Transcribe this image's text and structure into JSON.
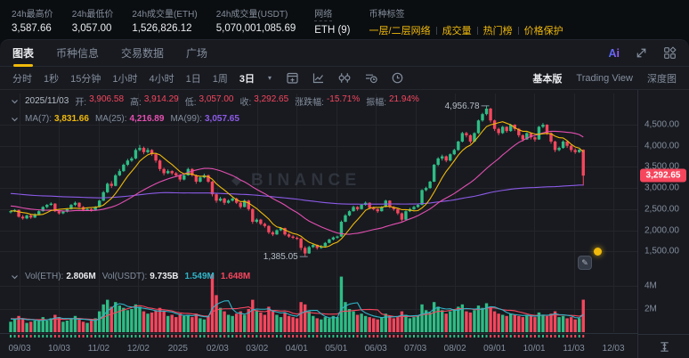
{
  "stats_bar": {
    "items": [
      {
        "label": "24h最高价",
        "value": "3,587.66"
      },
      {
        "label": "24h最低价",
        "value": "3,057.00"
      },
      {
        "label": "24h成交量(ETH)",
        "value": "1,526,826.12"
      },
      {
        "label": "24h成交量(USDT)",
        "value": "5,070,001,085.69"
      },
      {
        "label": "网络",
        "value": "ETH (9)",
        "dashed": true
      }
    ],
    "tags_label": "币种标签",
    "tags": [
      "一层/二层网络",
      "成交量",
      "热门榜",
      "价格保护"
    ]
  },
  "tabs": [
    {
      "label": "图表",
      "active": true
    },
    {
      "label": "币种信息",
      "active": false
    },
    {
      "label": "交易数据",
      "active": false
    },
    {
      "label": "广场",
      "active": false
    }
  ],
  "header_icons": {
    "ai_label": "Ai"
  },
  "toolbar": {
    "intervals": [
      "分时",
      "1秒",
      "15分钟",
      "1小时",
      "4小时",
      "1日",
      "1周"
    ],
    "selected_interval": "3日",
    "views": [
      {
        "label": "基本版",
        "active": true
      },
      {
        "label": "Trading View",
        "active": false
      },
      {
        "label": "深度图",
        "active": false
      }
    ]
  },
  "ohlc_row": {
    "date": "2025/11/03",
    "items": [
      {
        "label": "开:",
        "value": "3,906.58"
      },
      {
        "label": "高:",
        "value": "3,914.29"
      },
      {
        "label": "低:",
        "value": "3,057.00"
      },
      {
        "label": "收:",
        "value": "3,292.65"
      },
      {
        "label": "涨跌幅:",
        "value": "-15.71%"
      },
      {
        "label": "振幅:",
        "value": "21.94%"
      }
    ],
    "value_color": "#f6465d"
  },
  "ma_row": {
    "items": [
      {
        "label": "MA(7):",
        "value": "3,831.66",
        "color": "#f0b90b"
      },
      {
        "label": "MA(25):",
        "value": "4,216.89",
        "color": "#e44fb0"
      },
      {
        "label": "MA(99):",
        "value": "3,057.65",
        "color": "#8d5be8"
      }
    ]
  },
  "vol_row": {
    "items": [
      {
        "label": "Vol(ETH):",
        "value": "2.806M",
        "color": "#eaecef"
      },
      {
        "label": "Vol(USDT):",
        "value": "9.735B",
        "color": "#eaecef"
      },
      {
        "label": "",
        "value": "1.549M",
        "color": "#30b5c8"
      },
      {
        "label": "",
        "value": "1.648M",
        "color": "#f6465d"
      }
    ]
  },
  "watermark": "BINANCE",
  "chart_data": {
    "type": "candlestick",
    "interval": "3日",
    "x_ticks": [
      "09/03",
      "10/03",
      "11/02",
      "12/02",
      "2025",
      "02/03",
      "03/02",
      "04/01",
      "05/01",
      "06/03",
      "07/03",
      "08/02",
      "09/01",
      "10/01",
      "11/03",
      "12/03"
    ],
    "y_ticks": [
      {
        "label": "4,500.00",
        "value": 4500
      },
      {
        "label": "4,000.00",
        "value": 4000
      },
      {
        "label": "3,500.00",
        "value": 3500
      },
      {
        "label": "3,000.00",
        "value": 3000
      },
      {
        "label": "2,500.00",
        "value": 2500
      },
      {
        "label": "2,000.00",
        "value": 2000
      },
      {
        "label": "1,500.00",
        "value": 1500
      }
    ],
    "vol_ticks": [
      {
        "label": "4M",
        "value": 4
      },
      {
        "label": "2M",
        "value": 2
      }
    ],
    "current_price": "3,292.65",
    "current_price_value": 3292.65,
    "high_annotation": {
      "label": "4,956.78",
      "value": 4956.78,
      "candle_index": 118
    },
    "low_annotation": {
      "label": "1,385.05",
      "value": 1385.05,
      "candle_index": 73
    },
    "colors": {
      "up": "#2ebd85",
      "down": "#f6465d",
      "ma7": "#f0b90b",
      "ma25": "#e44fb0",
      "ma99": "#8d5be8",
      "vol_ma5": "#30b5c8",
      "vol_ma10": "#f6465d"
    },
    "ma_seed_closes": [
      3500,
      3520,
      3480,
      3450,
      3400,
      3380,
      3350,
      3300,
      3250,
      3200,
      3150,
      3100,
      3150,
      3200,
      3100,
      3050,
      3000,
      3050,
      3100,
      3000,
      2950,
      2900,
      2950,
      3000,
      2950,
      2900,
      2850,
      2900,
      2950,
      2850,
      2800,
      2750,
      2800,
      2850,
      2800,
      2750,
      2700,
      2750,
      2800,
      2700,
      2650,
      2600,
      2650,
      2700,
      2650,
      2600,
      2550,
      2600,
      2650,
      2550,
      2500,
      2450,
      2500,
      2550,
      2500,
      2450,
      2400,
      2450,
      2500,
      2450
    ],
    "ma_seed_volume": 1.2,
    "candles": [
      [
        2430,
        2470,
        2400,
        2450
      ],
      [
        2450,
        2500,
        2430,
        2480
      ],
      [
        2480,
        2490,
        2300,
        2320
      ],
      [
        2320,
        2360,
        2250,
        2280
      ],
      [
        2280,
        2370,
        2260,
        2350
      ],
      [
        2350,
        2380,
        2270,
        2300
      ],
      [
        2300,
        2400,
        2290,
        2380
      ],
      [
        2380,
        2470,
        2360,
        2450
      ],
      [
        2450,
        2570,
        2440,
        2550
      ],
      [
        2550,
        2620,
        2520,
        2600
      ],
      [
        2600,
        2660,
        2580,
        2630
      ],
      [
        2630,
        2640,
        2430,
        2450
      ],
      [
        2450,
        2480,
        2370,
        2400
      ],
      [
        2400,
        2460,
        2380,
        2440
      ],
      [
        2440,
        2520,
        2420,
        2500
      ],
      [
        2500,
        2620,
        2490,
        2600
      ],
      [
        2600,
        2680,
        2570,
        2650
      ],
      [
        2650,
        2660,
        2530,
        2550
      ],
      [
        2550,
        2570,
        2450,
        2480
      ],
      [
        2480,
        2530,
        2460,
        2500
      ],
      [
        2500,
        2520,
        2440,
        2480
      ],
      [
        2480,
        2570,
        2460,
        2550
      ],
      [
        2550,
        2720,
        2540,
        2700
      ],
      [
        2700,
        2930,
        2690,
        2900
      ],
      [
        2900,
        3130,
        2880,
        3100
      ],
      [
        3100,
        3160,
        3000,
        3050
      ],
      [
        3050,
        3330,
        3040,
        3300
      ],
      [
        3300,
        3450,
        3280,
        3400
      ],
      [
        3400,
        3580,
        3380,
        3550
      ],
      [
        3550,
        3690,
        3520,
        3650
      ],
      [
        3650,
        3740,
        3620,
        3700
      ],
      [
        3700,
        3940,
        3680,
        3900
      ],
      [
        3900,
        4020,
        3870,
        3950
      ],
      [
        3950,
        3980,
        3800,
        3850
      ],
      [
        3850,
        3950,
        3820,
        3900
      ],
      [
        3900,
        3920,
        3760,
        3800
      ],
      [
        3800,
        3830,
        3600,
        3650
      ],
      [
        3650,
        3680,
        3400,
        3450
      ],
      [
        3450,
        3480,
        3300,
        3350
      ],
      [
        3350,
        3440,
        3330,
        3400
      ],
      [
        3400,
        3420,
        3310,
        3350
      ],
      [
        3350,
        3380,
        3260,
        3300
      ],
      [
        3300,
        3330,
        3150,
        3200
      ],
      [
        3200,
        3340,
        3180,
        3300
      ],
      [
        3300,
        3480,
        3290,
        3450
      ],
      [
        3450,
        3470,
        3270,
        3300
      ],
      [
        3300,
        3320,
        3100,
        3150
      ],
      [
        3150,
        3280,
        3130,
        3250
      ],
      [
        3250,
        3340,
        3230,
        3300
      ],
      [
        3300,
        3320,
        3120,
        3150
      ],
      [
        3150,
        3170,
        2800,
        2850
      ],
      [
        2850,
        2880,
        2650,
        2700
      ],
      [
        2700,
        2790,
        2680,
        2750
      ],
      [
        2750,
        2770,
        2600,
        2650
      ],
      [
        2650,
        2730,
        2630,
        2700
      ],
      [
        2700,
        2780,
        2680,
        2750
      ],
      [
        2750,
        2770,
        2620,
        2650
      ],
      [
        2650,
        2670,
        2510,
        2550
      ],
      [
        2550,
        2730,
        2540,
        2700
      ],
      [
        2700,
        2720,
        2460,
        2500
      ],
      [
        2500,
        2520,
        2150,
        2200
      ],
      [
        2200,
        2280,
        2170,
        2250
      ],
      [
        2250,
        2270,
        2120,
        2150
      ],
      [
        2150,
        2180,
        2060,
        2100
      ],
      [
        2100,
        2120,
        1910,
        1950
      ],
      [
        1950,
        1980,
        1860,
        1900
      ],
      [
        1900,
        2020,
        1890,
        2000
      ],
      [
        2000,
        2070,
        1980,
        2050
      ],
      [
        2050,
        2060,
        1870,
        1900
      ],
      [
        1900,
        1930,
        1820,
        1850
      ],
      [
        1850,
        1880,
        1790,
        1820
      ],
      [
        1820,
        1850,
        1770,
        1800
      ],
      [
        1800,
        1820,
        1520,
        1580
      ],
      [
        1580,
        1620,
        1385.05,
        1450
      ],
      [
        1450,
        1630,
        1440,
        1600
      ],
      [
        1600,
        1680,
        1580,
        1650
      ],
      [
        1650,
        1660,
        1540,
        1580
      ],
      [
        1580,
        1650,
        1560,
        1620
      ],
      [
        1620,
        1720,
        1610,
        1700
      ],
      [
        1700,
        1800,
        1690,
        1780
      ],
      [
        1780,
        1850,
        1760,
        1830
      ],
      [
        1830,
        1870,
        1800,
        1850
      ],
      [
        1850,
        2230,
        1840,
        2200
      ],
      [
        2200,
        2380,
        2190,
        2350
      ],
      [
        2350,
        2470,
        2330,
        2450
      ],
      [
        2450,
        2580,
        2440,
        2550
      ],
      [
        2550,
        2570,
        2460,
        2500
      ],
      [
        2500,
        2620,
        2490,
        2600
      ],
      [
        2600,
        2680,
        2580,
        2650
      ],
      [
        2650,
        2660,
        2500,
        2530
      ],
      [
        2530,
        2560,
        2470,
        2500
      ],
      [
        2500,
        2520,
        2410,
        2450
      ],
      [
        2450,
        2570,
        2440,
        2550
      ],
      [
        2550,
        2720,
        2540,
        2700
      ],
      [
        2700,
        2710,
        2520,
        2550
      ],
      [
        2550,
        2570,
        2460,
        2500
      ],
      [
        2500,
        2520,
        2360,
        2400
      ],
      [
        2400,
        2420,
        2210,
        2250
      ],
      [
        2250,
        2470,
        2240,
        2450
      ],
      [
        2450,
        2530,
        2430,
        2500
      ],
      [
        2500,
        2580,
        2480,
        2550
      ],
      [
        2550,
        2630,
        2530,
        2600
      ],
      [
        2600,
        2970,
        2590,
        2950
      ],
      [
        2950,
        3030,
        2920,
        3000
      ],
      [
        3000,
        3170,
        2980,
        3150
      ],
      [
        3150,
        3570,
        3140,
        3550
      ],
      [
        3550,
        3730,
        3520,
        3700
      ],
      [
        3700,
        3790,
        3650,
        3750
      ],
      [
        3750,
        3770,
        3610,
        3650
      ],
      [
        3650,
        3820,
        3630,
        3800
      ],
      [
        3800,
        3930,
        3780,
        3900
      ],
      [
        3900,
        4120,
        3880,
        4100
      ],
      [
        4100,
        4330,
        4080,
        4300
      ],
      [
        4300,
        4330,
        4200,
        4250
      ],
      [
        4250,
        4270,
        4050,
        4100
      ],
      [
        4100,
        4320,
        4090,
        4300
      ],
      [
        4300,
        4620,
        4280,
        4600
      ],
      [
        4600,
        4780,
        4570,
        4750
      ],
      [
        4750,
        4956.78,
        4720,
        4880
      ],
      [
        4880,
        4900,
        4550,
        4600
      ],
      [
        4600,
        4620,
        4350,
        4400
      ],
      [
        4400,
        4430,
        4250,
        4300
      ],
      [
        4300,
        4470,
        4280,
        4450
      ],
      [
        4450,
        4460,
        4310,
        4350
      ],
      [
        4350,
        4520,
        4330,
        4500
      ],
      [
        4500,
        4510,
        4350,
        4400
      ],
      [
        4400,
        4420,
        4200,
        4250
      ],
      [
        4250,
        4270,
        4100,
        4150
      ],
      [
        4150,
        4320,
        4140,
        4300
      ],
      [
        4300,
        4310,
        4150,
        4200
      ],
      [
        4200,
        4220,
        4100,
        4150
      ],
      [
        4150,
        4470,
        4140,
        4450
      ],
      [
        4450,
        4540,
        4420,
        4500
      ],
      [
        4500,
        4510,
        4260,
        4300
      ],
      [
        4300,
        4320,
        4050,
        4100
      ],
      [
        4100,
        4120,
        3850,
        3900
      ],
      [
        3900,
        3980,
        3870,
        3950
      ],
      [
        3950,
        4130,
        3930,
        4100
      ],
      [
        4100,
        4110,
        3950,
        4000
      ],
      [
        4000,
        4020,
        3850,
        3900
      ],
      [
        3900,
        3940,
        3810,
        3850
      ],
      [
        3850,
        3920,
        3830,
        3906.58
      ],
      [
        3906.58,
        3914.29,
        3057.0,
        3292.65
      ]
    ],
    "volumes_m": [
      0.9,
      1.1,
      1.4,
      1.2,
      0.8,
      0.9,
      1.0,
      1.1,
      1.3,
      1.0,
      1.2,
      1.5,
      1.3,
      0.9,
      1.0,
      1.2,
      1.4,
      1.1,
      0.9,
      0.8,
      1.0,
      1.2,
      1.8,
      2.4,
      2.8,
      2.2,
      2.6,
      2.3,
      2.1,
      1.9,
      2.0,
      2.4,
      2.2,
      1.8,
      1.6,
      1.7,
      1.9,
      2.1,
      1.8,
      1.4,
      1.5,
      1.3,
      1.6,
      1.4,
      1.5,
      1.3,
      1.6,
      1.2,
      1.1,
      1.4,
      5.0,
      3.2,
      2.1,
      1.8,
      1.5,
      1.4,
      1.6,
      1.8,
      1.5,
      2.0,
      2.8,
      1.9,
      1.7,
      1.5,
      2.2,
      1.8,
      1.5,
      1.3,
      1.7,
      1.4,
      1.3,
      1.2,
      2.6,
      2.4,
      1.8,
      1.4,
      1.2,
      1.1,
      1.3,
      1.2,
      1.4,
      1.3,
      4.8,
      2.6,
      2.0,
      1.8,
      1.5,
      1.6,
      1.4,
      1.3,
      1.2,
      1.1,
      1.3,
      1.6,
      1.4,
      1.2,
      1.3,
      1.8,
      1.5,
      1.2,
      1.3,
      1.4,
      2.4,
      1.9,
      1.7,
      2.6,
      2.2,
      1.9,
      1.6,
      1.8,
      2.0,
      2.2,
      2.4,
      1.8,
      1.7,
      1.9,
      2.3,
      2.1,
      2.5,
      2.2,
      1.8,
      1.6,
      1.5,
      1.4,
      1.6,
      1.5,
      1.4,
      1.3,
      1.5,
      1.4,
      1.3,
      1.7,
      1.5,
      1.4,
      1.6,
      1.8,
      1.3,
      1.4,
      1.2,
      1.3,
      1.1,
      1.2,
      2.806
    ]
  }
}
